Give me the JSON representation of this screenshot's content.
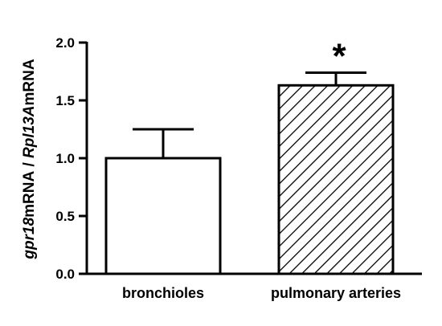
{
  "chart_data": {
    "type": "bar",
    "categories": [
      "bronchioles",
      "pulmonary arteries"
    ],
    "values": [
      1.0,
      1.63
    ],
    "error_upper": [
      1.25,
      1.74
    ],
    "ylim": [
      0,
      2.0
    ],
    "yticks": [
      "0.0",
      "0.5",
      "1.0",
      "1.5",
      "2.0"
    ],
    "ylabel_parts": [
      {
        "text": "gpr18",
        "italic": true
      },
      {
        "text": "mRNA / ",
        "italic": false
      },
      {
        "text": "Rpl13A",
        "italic": true
      },
      {
        "text": "mRNA",
        "italic": false
      }
    ],
    "bar_styles": [
      "open",
      "hatched"
    ],
    "annotations": [
      "",
      "*"
    ],
    "grid": false,
    "legend": "none",
    "colors": {
      "axis": "#000000",
      "bar_edge": "#000000",
      "bar_fill": "#ffffff",
      "hatch": "#000000"
    }
  }
}
